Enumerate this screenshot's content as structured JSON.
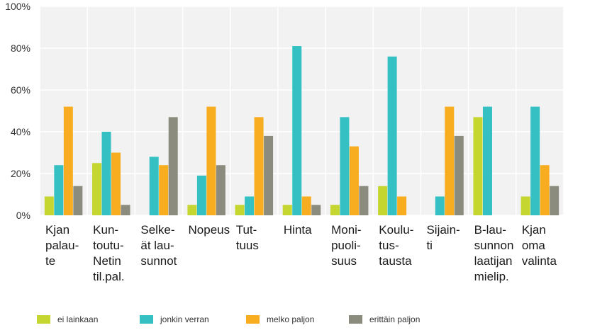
{
  "chart_data": {
    "type": "bar",
    "categories": [
      [
        "Kjan",
        "palau-",
        "te"
      ],
      [
        "Kun-",
        "toutu-",
        "Netin",
        "til.pal."
      ],
      [
        "Selke-",
        "ät lau-",
        "sunnot"
      ],
      [
        "Nopeus"
      ],
      [
        "Tut-",
        "tuus"
      ],
      [
        "Hinta"
      ],
      [
        "Moni-",
        "puoli-",
        "suus"
      ],
      [
        "Koulu-",
        "tus-",
        "tausta"
      ],
      [
        "Sijain-",
        "ti"
      ],
      [
        "B-lau-",
        "sunnon",
        "laatijan",
        "mielip."
      ],
      [
        "Kjan",
        "oma",
        "valinta"
      ]
    ],
    "series": [
      {
        "name": "ei lainkaan",
        "color": "#c5d631",
        "values": [
          9,
          25,
          0,
          5,
          5,
          5,
          5,
          14,
          0,
          47,
          9
        ]
      },
      {
        "name": "jonkin verran",
        "color": "#35c1c3",
        "values": [
          24,
          40,
          28,
          19,
          9,
          81,
          47,
          76,
          9,
          52,
          52
        ]
      },
      {
        "name": "melko paljon",
        "color": "#f7ad1f",
        "values": [
          52,
          30,
          24,
          52,
          47,
          9,
          33,
          9,
          52,
          0,
          24
        ]
      },
      {
        "name": "erittäin paljon",
        "color": "#8c8c7e",
        "values": [
          14,
          5,
          47,
          24,
          38,
          5,
          14,
          0,
          38,
          0,
          14
        ]
      }
    ],
    "yticks": [
      "0%",
      "20%",
      "40%",
      "60%",
      "80%",
      "100%"
    ],
    "ylim": [
      0,
      100
    ],
    "grid": true,
    "legend": "bottom",
    "title": "",
    "xlabel": "",
    "ylabel": ""
  }
}
